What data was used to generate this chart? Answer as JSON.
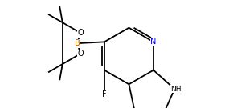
{
  "background_color": "#ffffff",
  "bond_color": "#000000",
  "atom_colors": {
    "B": "#b35900",
    "O": "#000000",
    "N": "#0000cc",
    "F": "#000000",
    "NH": "#000000"
  },
  "figsize": [
    2.8,
    1.4
  ],
  "dpi": 100
}
